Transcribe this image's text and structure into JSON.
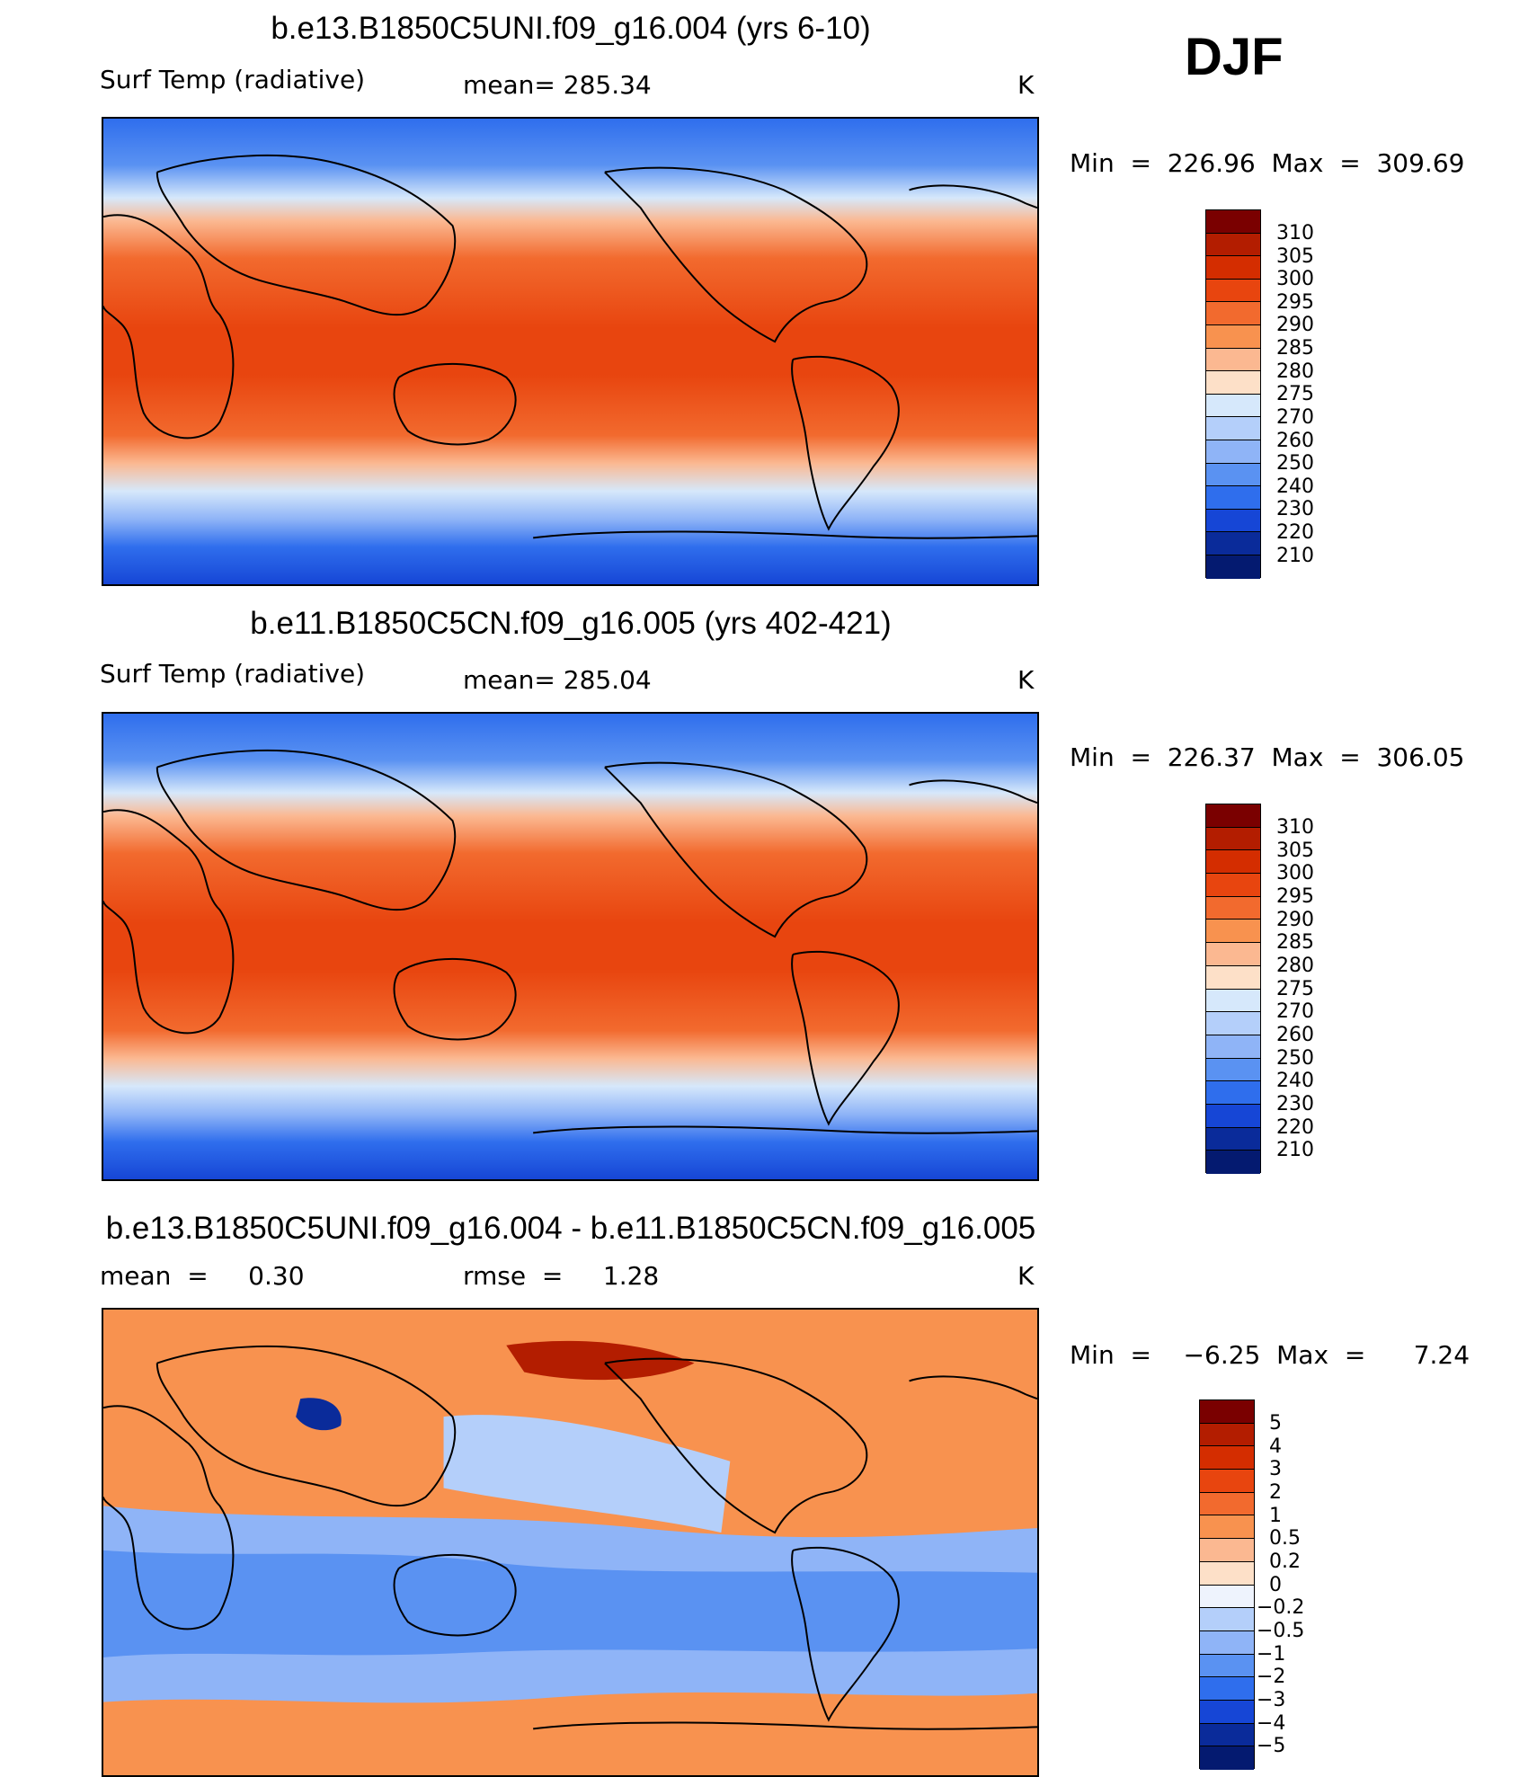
{
  "season": "DJF",
  "units": "K",
  "panels": [
    {
      "title": "b.e13.B1850C5UNI.f09_g16.004 (yrs 6-10)",
      "field_name": "Surf Temp (radiative)",
      "mean_text": "mean= 285.34",
      "units": "K",
      "minmax_text": "Min  =  226.96  Max  =  309.69",
      "legend": {
        "labels": [
          "310",
          "305",
          "300",
          "295",
          "290",
          "285",
          "280",
          "275",
          "270",
          "260",
          "250",
          "240",
          "230",
          "220",
          "210"
        ],
        "colors": [
          "#7a0000",
          "#b31d00",
          "#d42d00",
          "#e8450f",
          "#f26a2e",
          "#f8924f",
          "#fbb891",
          "#fde0c8",
          "#d6e8fb",
          "#b4cffa",
          "#8fb4f7",
          "#5a92f2",
          "#2f6eed",
          "#1646d6",
          "#0a2b9a",
          "#041a70"
        ]
      }
    },
    {
      "title": "b.e11.B1850C5CN.f09_g16.005 (yrs 402-421)",
      "field_name": "Surf Temp (radiative)",
      "mean_text": "mean= 285.04",
      "units": "K",
      "minmax_text": "Min  =  226.37  Max  =  306.05",
      "legend": {
        "labels": [
          "310",
          "305",
          "300",
          "295",
          "290",
          "285",
          "280",
          "275",
          "270",
          "260",
          "250",
          "240",
          "230",
          "220",
          "210"
        ],
        "colors": [
          "#7a0000",
          "#b31d00",
          "#d42d00",
          "#e8450f",
          "#f26a2e",
          "#f8924f",
          "#fbb891",
          "#fde0c8",
          "#d6e8fb",
          "#b4cffa",
          "#8fb4f7",
          "#5a92f2",
          "#2f6eed",
          "#1646d6",
          "#0a2b9a",
          "#041a70"
        ]
      }
    },
    {
      "title": "b.e13.B1850C5UNI.f09_g16.004 - b.e11.B1850C5CN.f09_g16.005",
      "mean_text": "mean  =     0.30",
      "rmse_text": "rmse  =     1.28",
      "units": "K",
      "minmax_text": "Min  =    −6.25  Max  =      7.24",
      "legend": {
        "labels": [
          "5",
          "4",
          "3",
          "2",
          "1",
          "0.5",
          "0.2",
          "0",
          "−0.2",
          "−0.5",
          "−1",
          "−2",
          "−3",
          "−4",
          "−5"
        ],
        "colors": [
          "#7a0000",
          "#b31d00",
          "#d42d00",
          "#e8450f",
          "#f26a2e",
          "#f8924f",
          "#fbb891",
          "#fde0c8",
          "#eef3fd",
          "#b4cffa",
          "#8fb4f7",
          "#5a92f2",
          "#2f6eed",
          "#1646d6",
          "#0a2b9a",
          "#041a70"
        ]
      }
    }
  ]
}
